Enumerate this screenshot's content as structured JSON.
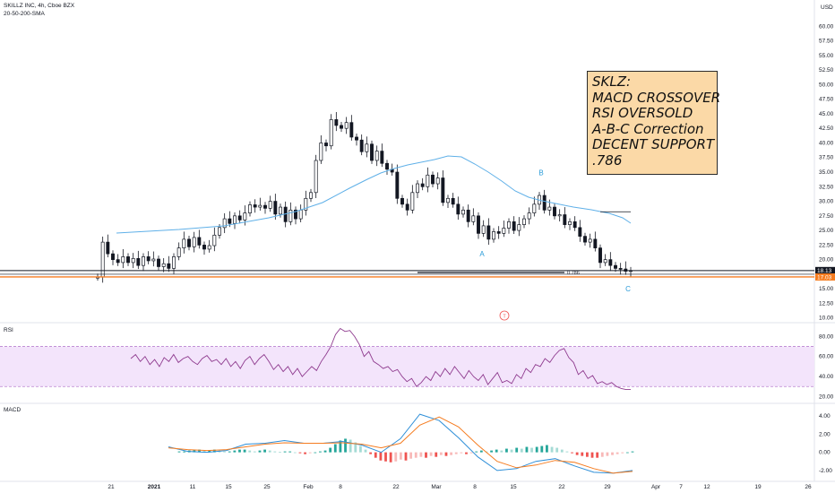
{
  "header": {
    "symbol_line": "SKILLZ INC, 4h, Cboe BZX",
    "indicator_line": "20-50-200-SMA",
    "currency": "USD"
  },
  "note": {
    "lines": [
      "SKLZ:",
      "MACD CROSSOVER",
      "RSI OVERSOLD",
      "A-B-C Correction",
      "DECENT SUPPORT",
      ".786"
    ]
  },
  "colors": {
    "up": "#131722",
    "down": "#131722",
    "sma": "#5fb0e8",
    "rsi_line": "#8e3a8e",
    "rsi_band": "#f3e4fb",
    "macd_line": "#2f8fd8",
    "signal_line": "#f57c20",
    "hist_up": "#26a69a",
    "hist_up_light": "#a5dbd5",
    "hist_down": "#ef5350",
    "hist_down_light": "#f8b9b8",
    "support_dark": "#131722",
    "support_orange": "#f57c20",
    "tag_dark": "#131722",
    "tag_orange": "#f57c20",
    "note_bg": "#fbd9a7"
  },
  "chart_data": [
    {
      "type": "candlestick",
      "pane": "price",
      "ylim": [
        9.5,
        64.5
      ],
      "y_ticks": [
        10,
        12.5,
        15,
        17.5,
        20,
        22.5,
        25,
        27.5,
        30,
        32.5,
        35,
        37.5,
        40,
        42.5,
        45,
        47.5,
        50,
        52.5,
        55,
        57.5,
        60
      ],
      "y_tick_labels": [
        "10.00",
        "12.50",
        "15.00",
        "17.50",
        "20.00",
        "22.50",
        "25.00",
        "27.50",
        "30.00",
        "32.50",
        "35.00",
        "37.50",
        "40.00",
        "42.50",
        "45.00",
        "47.50",
        "50.00",
        "52.50",
        "55.00",
        "57.50",
        "60.00"
      ],
      "x_tick_labels": [
        "21",
        "2021",
        "11",
        "15",
        "25",
        "Feb",
        "8",
        "22",
        "Mar",
        "8",
        "15",
        "22",
        "29",
        "Apr",
        "7",
        "12",
        "19",
        "26"
      ],
      "price_tags": [
        {
          "label": "18.13",
          "value": 18.13
        },
        {
          "label": "17.03",
          "value": 17.03
        }
      ],
      "fib_label": "0.786",
      "fib_value": 17.8,
      "wave_labels": [
        {
          "text": "A",
          "value": 21.0
        },
        {
          "text": "B",
          "value": 34.9
        },
        {
          "text": "C",
          "value": 15.0
        }
      ],
      "candles_close": [
        17,
        23,
        21,
        20,
        19.5,
        20.5,
        19.5,
        20.2,
        19,
        20.5,
        19.8,
        20.1,
        18.8,
        19.3,
        18.5,
        20.5,
        22,
        23.5,
        22.2,
        23.8,
        22.5,
        21.8,
        22.4,
        24.2,
        25.5,
        27,
        26.2,
        27.5,
        26.8,
        28,
        29.4,
        29,
        29.3,
        28.8,
        30,
        27.8,
        29,
        26.5,
        28.5,
        27,
        28.5,
        30.5,
        31.5,
        37,
        40,
        39.5,
        44,
        43,
        42.5,
        43.5,
        41,
        40.5,
        38.5,
        39.8,
        37,
        38.6,
        36.5,
        35.5,
        35,
        30.5,
        29.5,
        28.5,
        31.5,
        33,
        32.5,
        34.5,
        33,
        34,
        29.8,
        30.5,
        29.5,
        27.8,
        28.5,
        26.5,
        27.5,
        24.5,
        25.8,
        23.5,
        24.8,
        24.5,
        25.4,
        26.5,
        25,
        26,
        27,
        28,
        29.5,
        31,
        28.5,
        29,
        27.5,
        27.7,
        26,
        26.5,
        25.5,
        24,
        23,
        23.5,
        22,
        19.5,
        20,
        19,
        18.5,
        18.4,
        18,
        18.13
      ],
      "sma50": [
        [
          130,
          260
        ],
        [
          200,
          256
        ],
        [
          250,
          252
        ],
        [
          300,
          243
        ],
        [
          330,
          236
        ],
        [
          360,
          226
        ],
        [
          390,
          210
        ],
        [
          410,
          200
        ],
        [
          425,
          193
        ],
        [
          440,
          188
        ],
        [
          455,
          184
        ],
        [
          470,
          181
        ],
        [
          485,
          178
        ],
        [
          500,
          174
        ],
        [
          515,
          175
        ],
        [
          530,
          183
        ],
        [
          545,
          192
        ],
        [
          560,
          202
        ],
        [
          575,
          213
        ],
        [
          590,
          220
        ],
        [
          605,
          224
        ],
        [
          620,
          227
        ],
        [
          640,
          231
        ],
        [
          660,
          234
        ],
        [
          680,
          238
        ],
        [
          695,
          243
        ],
        [
          704,
          249
        ]
      ]
    },
    {
      "type": "line",
      "pane": "rsi",
      "name": "RSI",
      "ylim": [
        15,
        92
      ],
      "y_ticks": [
        20,
        40,
        60,
        80
      ],
      "y_tick_labels": [
        "20.00",
        "40.00",
        "60.00",
        "80.00"
      ],
      "band": [
        30,
        70
      ],
      "values": [
        58,
        62,
        55,
        60,
        52,
        57,
        50,
        59,
        55,
        62,
        54,
        58,
        60,
        55,
        52,
        58,
        61,
        55,
        57,
        52,
        58,
        50,
        55,
        48,
        56,
        60,
        52,
        58,
        62,
        55,
        47,
        52,
        45,
        50,
        42,
        48,
        40,
        45,
        50,
        46,
        55,
        62,
        70,
        82,
        88,
        85,
        86,
        80,
        72,
        60,
        65,
        55,
        52,
        48,
        50,
        45,
        47,
        40,
        35,
        38,
        30,
        34,
        40,
        36,
        45,
        40,
        48,
        42,
        50,
        44,
        38,
        46,
        40,
        36,
        42,
        32,
        38,
        44,
        34,
        36,
        33,
        42,
        38,
        48,
        44,
        52,
        50,
        58,
        54,
        61,
        66,
        68,
        59,
        54,
        42,
        46,
        38,
        41,
        33,
        35,
        32,
        34,
        30,
        28,
        27,
        27
      ]
    },
    {
      "type": "line",
      "pane": "macd",
      "name": "MACD",
      "ylim": [
        -3.2,
        5.2
      ],
      "y_ticks": [
        -2,
        0,
        2,
        4
      ],
      "y_tick_labels": [
        "-2.00",
        "0.00",
        "2.00",
        "4.00"
      ],
      "macd": [
        [
          0.6,
          0
        ],
        [
          0.1,
          0.04
        ],
        [
          0,
          0.1
        ],
        [
          0.2,
          0.16
        ],
        [
          0.9,
          0.22
        ],
        [
          1.0,
          0.28
        ],
        [
          1.3,
          0.34
        ],
        [
          1.0,
          0.4
        ],
        [
          1.0,
          0.46
        ],
        [
          1.2,
          0.52
        ],
        [
          0.8,
          0.58
        ],
        [
          0.0,
          0.66
        ],
        [
          1.5,
          0.72
        ],
        [
          4.2,
          0.77
        ],
        [
          3.5,
          0.82
        ],
        [
          1.6,
          0.86
        ],
        [
          -0.5,
          0.9
        ],
        [
          -2.0,
          0.93
        ],
        [
          -1.8,
          0.97
        ],
        [
          -1.0,
          1.0
        ],
        [
          -0.7,
          1.04
        ],
        [
          -1.5,
          1.09
        ],
        [
          -2.2,
          1.13
        ],
        [
          -2.3,
          1.18
        ],
        [
          -2.0,
          1.2
        ]
      ],
      "signal": [
        [
          0.5,
          0
        ],
        [
          0.3,
          0.05
        ],
        [
          0.2,
          0.1
        ],
        [
          0.3,
          0.16
        ],
        [
          0.6,
          0.22
        ],
        [
          0.9,
          0.3
        ],
        [
          1.05,
          0.36
        ],
        [
          1.0,
          0.42
        ],
        [
          1.0,
          0.48
        ],
        [
          1.05,
          0.54
        ],
        [
          0.9,
          0.6
        ],
        [
          0.5,
          0.66
        ],
        [
          1.0,
          0.72
        ],
        [
          3.0,
          0.78
        ],
        [
          3.9,
          0.83
        ],
        [
          2.8,
          0.87
        ],
        [
          0.8,
          0.91
        ],
        [
          -1.0,
          0.94
        ],
        [
          -1.7,
          0.98
        ],
        [
          -1.4,
          1.01
        ],
        [
          -0.9,
          1.05
        ],
        [
          -1.1,
          1.09
        ],
        [
          -1.8,
          1.13
        ],
        [
          -2.3,
          1.17
        ],
        [
          -2.1,
          1.2
        ]
      ],
      "histogram": [
        0.1,
        0.1,
        0.2,
        0.3,
        0.3,
        0.2,
        0.2,
        0.3,
        0.2,
        0.1,
        0.1,
        0.2,
        0.3,
        0.3,
        0.2,
        0.1,
        0.2,
        0.3,
        0.2,
        0.1,
        0.05,
        0.1,
        0.1,
        0.0,
        -0.1,
        -0.2,
        -0.1,
        0.0,
        0.1,
        0.2,
        0.5,
        0.9,
        1.3,
        1.5,
        1.4,
        1.1,
        0.7,
        0.3,
        -0.2,
        -0.6,
        -0.9,
        -1.0,
        -1.1,
        -1.0,
        -0.8,
        -0.9,
        -0.7,
        -0.6,
        -0.5,
        -0.6,
        -0.4,
        -0.5,
        -0.3,
        -0.4,
        -0.3,
        -0.2,
        -0.1,
        -0.2,
        -0.1,
        0.1,
        0.2,
        0.1,
        0.2,
        0.3,
        0.2,
        0.4,
        0.3,
        0.5,
        0.4,
        0.6,
        0.5,
        0.6,
        0.7,
        0.8,
        0.6,
        0.5,
        0.3,
        0.1,
        -0.1,
        -0.3,
        -0.4,
        -0.5,
        -0.6,
        -0.6,
        -0.5,
        -0.4,
        -0.3,
        -0.2,
        -0.1,
        0.0,
        0.1
      ]
    }
  ]
}
